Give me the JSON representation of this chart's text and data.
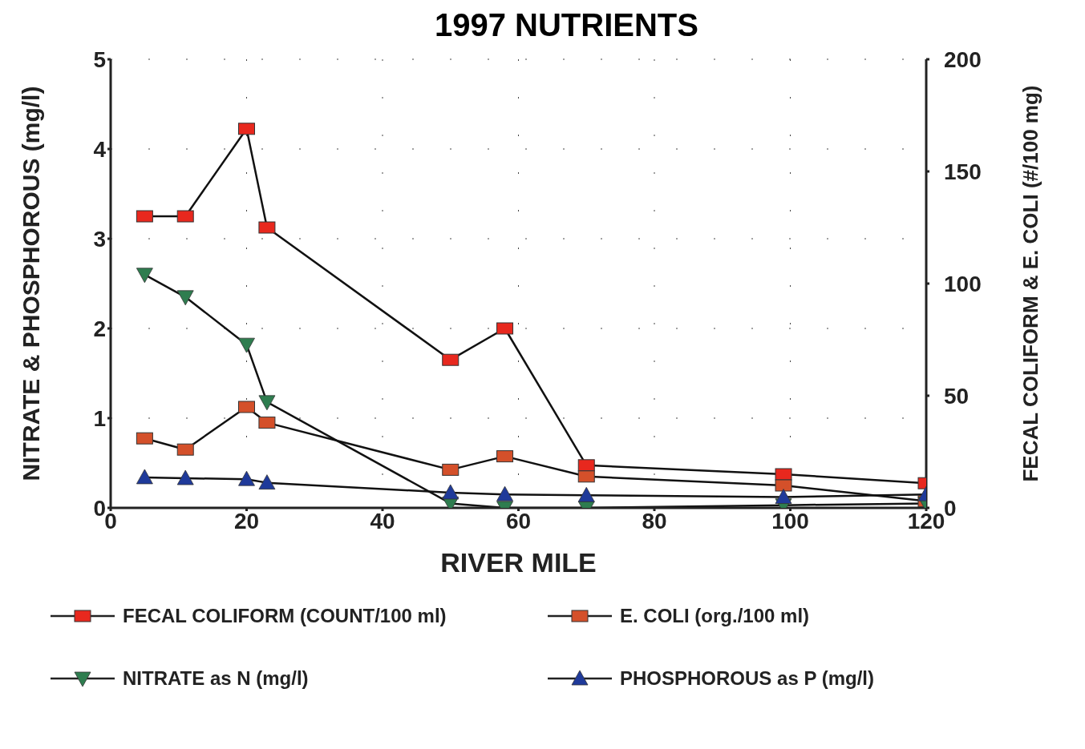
{
  "chart_data": {
    "type": "line",
    "title": "1997 NUTRIENTS",
    "xlabel": "RIVER MILE",
    "ylabel": "NITRATE & PHOSPHOROUS (mg/l)",
    "y2label": "FECAL COLIFORM & E. COLI (#/100 mg)",
    "x": [
      5,
      11,
      20,
      23,
      50,
      58,
      70,
      99,
      120
    ],
    "series": [
      {
        "name": "FECAL COLIFORM (COUNT/100 ml)",
        "color": "#e8281e",
        "axis": "y2",
        "marker": "square",
        "values": [
          130,
          130,
          169,
          125,
          66,
          80,
          19,
          15,
          11
        ]
      },
      {
        "name": "E. COLI (org./100 ml)",
        "color": "#d4502a",
        "axis": "y2",
        "marker": "square",
        "values": [
          31,
          26,
          45,
          38,
          17,
          23,
          14,
          10,
          3
        ]
      },
      {
        "name": "NITRATE as N (mg/l)",
        "color": "#2e7d4f",
        "marker": "triangle-down",
        "values": [
          2.6,
          2.35,
          1.82,
          1.18,
          0.05,
          0,
          0,
          0.03,
          0.05
        ]
      },
      {
        "name": "PHOSPHOROUS as P (mg/l)",
        "color": "#1f3a9a",
        "marker": "triangle",
        "values": [
          0.34,
          0.33,
          0.32,
          0.28,
          0.17,
          0.15,
          0.14,
          0.12,
          0.15
        ]
      }
    ],
    "xlim": [
      0,
      120
    ],
    "xticks": [
      0,
      20,
      40,
      60,
      80,
      100,
      120
    ],
    "ylim": [
      0,
      5
    ],
    "yticks": [
      0,
      1,
      2,
      3,
      4,
      5
    ],
    "y2lim": [
      0,
      200
    ],
    "y2ticks": [
      0,
      50,
      100,
      150,
      200
    ],
    "grid": true,
    "legend": "bottom",
    "line_style": "solid"
  }
}
